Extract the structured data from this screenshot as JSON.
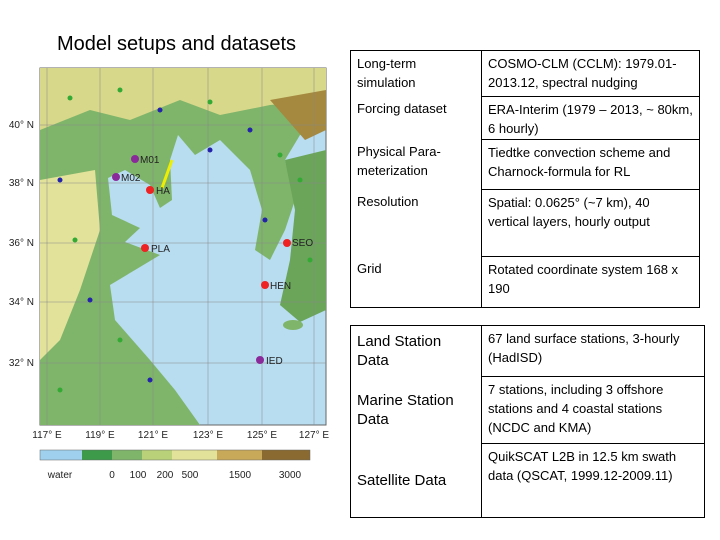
{
  "title": "Model setups and datasets",
  "map": {
    "lat_labels": [
      "40° N",
      "38° N",
      "36° N",
      "34° N",
      "32° N"
    ],
    "lon_labels": [
      "117° E",
      "119° E",
      "121° E",
      "123° E",
      "125° E",
      "127° E"
    ],
    "stations": [
      "M01",
      "M02",
      "HA",
      "PLA",
      "SEO",
      "HEN",
      "IED"
    ],
    "colorbar_labels": [
      "water",
      "0",
      "100",
      "200",
      "500",
      "1500",
      "3000"
    ]
  },
  "setup_table": {
    "rows": [
      [
        "Long-term simulation",
        "COSMO-CLM (CCLM): 1979.01-2013.12, spectral nudging"
      ],
      [
        "Forcing dataset",
        "ERA-Interim (1979 – 2013, ~ 80km, 6 hourly)"
      ],
      [
        "Physical Para-meterization",
        "Tiedtke convection scheme and Charnock-formula for RL"
      ],
      [
        "Resolution",
        "Spatial: 0.0625° (~7 km), 40 vertical layers, hourly output"
      ],
      [
        "Grid",
        "Rotated coordinate system 168 x 190"
      ]
    ]
  },
  "data_table": {
    "rows": [
      [
        "Land Station Data",
        "67 land surface stations, 3-hourly (HadISD)"
      ],
      [
        "Marine Station Data",
        "7 stations, including 3 offshore stations and 4 coastal stations (NCDC and KMA)"
      ],
      [
        "Satellite Data",
        "QuikSCAT L2B in 12.5 km swath data (QSCAT, 1999.12-2009.11)"
      ]
    ]
  }
}
